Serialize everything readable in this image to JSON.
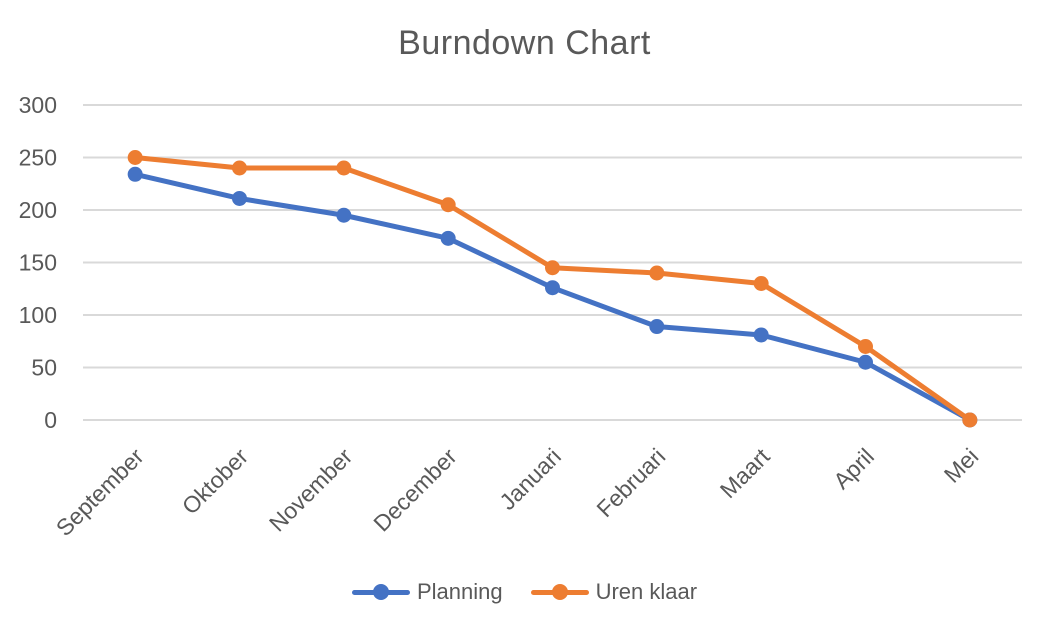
{
  "chart_data": {
    "type": "line",
    "title": "Burndown Chart",
    "categories": [
      "September",
      "Oktober",
      "November",
      "December",
      "Januari",
      "Februari",
      "Maart",
      "April",
      "Mei"
    ],
    "series": [
      {
        "name": "Planning",
        "color": "#4472C4",
        "marker": "circle",
        "values": [
          234,
          211,
          195,
          173,
          126,
          89,
          81,
          55,
          0
        ]
      },
      {
        "name": "Uren klaar",
        "color": "#ED7D31",
        "marker": "circle",
        "values": [
          250,
          240,
          240,
          205,
          145,
          140,
          130,
          70,
          0
        ]
      }
    ],
    "xlabel": "",
    "ylabel": "",
    "ylim": [
      0,
      300
    ],
    "ytick_step": 50,
    "yticks": [
      0,
      50,
      100,
      150,
      200,
      250,
      300
    ],
    "grid": true,
    "legend_position": "bottom",
    "x_label_rotation": -45
  },
  "colors": {
    "text": "#595959",
    "grid": "#D9D9D9",
    "background": "#FFFFFF",
    "series_blue": "#4472C4",
    "series_orange": "#ED7D31"
  }
}
